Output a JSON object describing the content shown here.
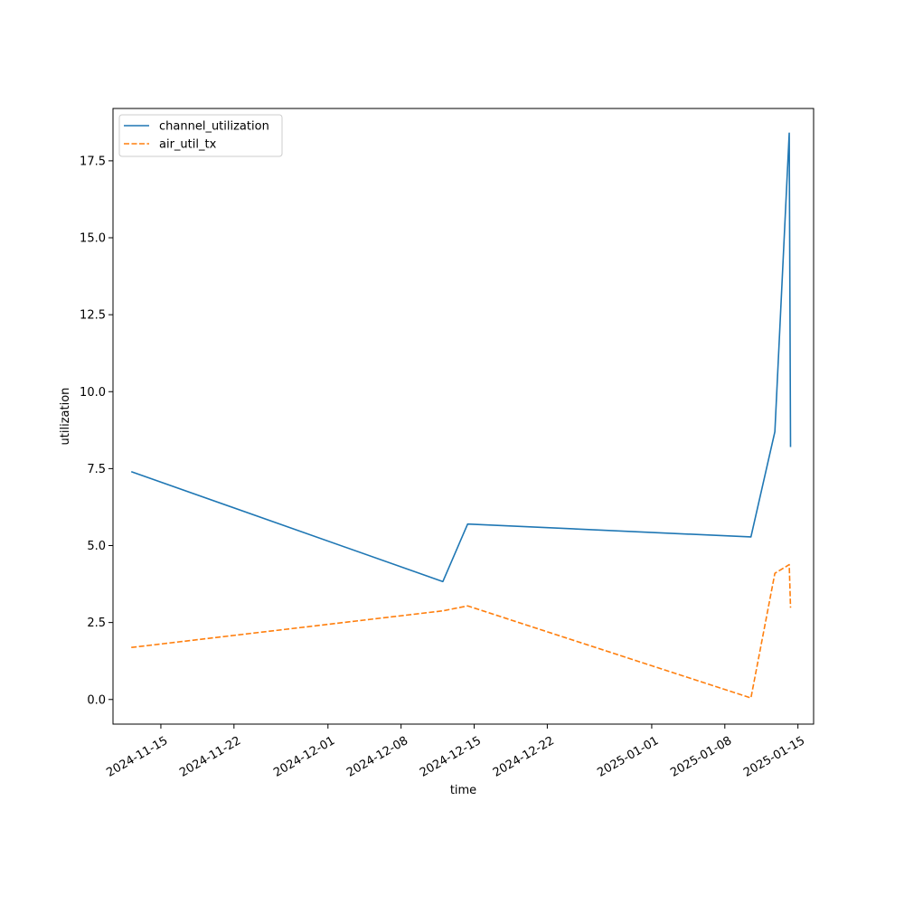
{
  "chart_data": {
    "type": "line",
    "title": "",
    "xlabel": "time",
    "ylabel": "utilization",
    "x_type": "date",
    "xlim": [
      "2024-11-10T10:00",
      "2025-01-16T12:00"
    ],
    "ylim": [
      -0.8,
      19.2
    ],
    "y_ticks": [
      0.0,
      2.5,
      5.0,
      7.5,
      10.0,
      12.5,
      15.0,
      17.5
    ],
    "y_tick_labels": [
      "0.0",
      "2.5",
      "5.0",
      "7.5",
      "10.0",
      "12.5",
      "15.0",
      "17.5"
    ],
    "x_ticks": [
      "2024-11-15",
      "2024-11-22",
      "2024-12-01",
      "2024-12-08",
      "2024-12-15",
      "2024-12-22",
      "2025-01-01",
      "2025-01-08",
      "2025-01-15"
    ],
    "x_tick_labels": [
      "2024-11-15",
      "2024-11-22",
      "2024-12-01",
      "2024-12-08",
      "2024-12-15",
      "2024-12-22",
      "2025-01-01",
      "2025-01-08",
      "2025-01-15"
    ],
    "grid": false,
    "legend_position": "top-left",
    "series": [
      {
        "name": "channel_utilization",
        "color": "#1f77b4",
        "style": "solid",
        "points": [
          {
            "x": "2024-11-12T04:00",
            "y": 7.4
          },
          {
            "x": "2024-12-12T00:00",
            "y": 3.83
          },
          {
            "x": "2024-12-14T09:00",
            "y": 5.7
          },
          {
            "x": "2025-01-10T12:00",
            "y": 5.28
          },
          {
            "x": "2025-01-12T19:00",
            "y": 8.7
          },
          {
            "x": "2025-01-14T04:00",
            "y": 18.4
          },
          {
            "x": "2025-01-14T07:00",
            "y": 8.2
          }
        ]
      },
      {
        "name": "air_util_tx",
        "color": "#ff7f0e",
        "style": "dashed",
        "points": [
          {
            "x": "2024-11-12T04:00",
            "y": 1.69
          },
          {
            "x": "2024-12-12T00:00",
            "y": 2.88
          },
          {
            "x": "2024-12-14T09:00",
            "y": 3.04
          },
          {
            "x": "2025-01-10T12:00",
            "y": 0.05
          },
          {
            "x": "2025-01-12T19:00",
            "y": 4.1
          },
          {
            "x": "2025-01-14T04:00",
            "y": 4.38
          },
          {
            "x": "2025-01-14T07:00",
            "y": 2.98
          }
        ]
      }
    ]
  }
}
